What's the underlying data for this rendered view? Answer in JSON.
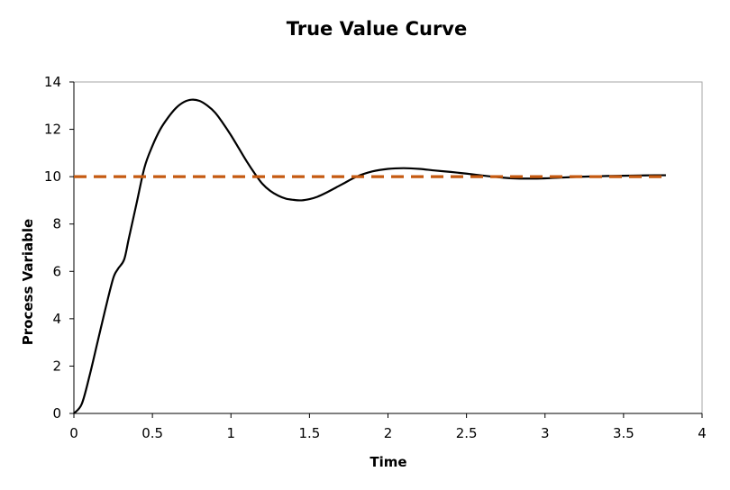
{
  "chart_data": {
    "type": "line",
    "title": "True Value Curve",
    "xlabel": "Time",
    "ylabel": "Process Variable",
    "xlim": [
      0,
      4
    ],
    "ylim": [
      0,
      14
    ],
    "x_ticks": [
      "0",
      "0.5",
      "1",
      "1.5",
      "2",
      "2.5",
      "3",
      "3.5",
      "4"
    ],
    "y_ticks": [
      "0",
      "2",
      "4",
      "6",
      "8",
      "10",
      "12",
      "14"
    ],
    "grid": false,
    "legend": "none",
    "series": [
      {
        "role": "response",
        "style": "solid",
        "color": "#000000",
        "x": [
          0,
          0.05,
          0.1,
          0.15,
          0.2,
          0.25,
          0.28,
          0.32,
          0.35,
          0.4,
          0.45,
          0.5,
          0.55,
          0.6,
          0.65,
          0.7,
          0.75,
          0.8,
          0.85,
          0.9,
          0.95,
          1.0,
          1.05,
          1.1,
          1.15,
          1.2,
          1.25,
          1.3,
          1.35,
          1.4,
          1.45,
          1.5,
          1.55,
          1.6,
          1.7,
          1.8,
          1.9,
          2.0,
          2.1,
          2.2,
          2.3,
          2.4,
          2.5,
          2.6,
          2.7,
          2.8,
          2.9,
          3.0,
          3.1,
          3.2,
          3.3,
          3.4,
          3.5,
          3.6,
          3.7,
          3.77
        ],
        "y": [
          0,
          0.4,
          1.6,
          3.0,
          4.4,
          5.7,
          6.1,
          6.5,
          7.4,
          8.9,
          10.4,
          11.3,
          12.0,
          12.5,
          12.9,
          13.15,
          13.25,
          13.2,
          13.0,
          12.7,
          12.25,
          11.75,
          11.2,
          10.65,
          10.15,
          9.7,
          9.4,
          9.2,
          9.07,
          9.02,
          9.0,
          9.05,
          9.15,
          9.3,
          9.65,
          10.0,
          10.22,
          10.33,
          10.36,
          10.33,
          10.26,
          10.2,
          10.13,
          10.05,
          9.98,
          9.93,
          9.92,
          9.93,
          9.96,
          9.99,
          10.01,
          10.03,
          10.04,
          10.05,
          10.06,
          10.06
        ]
      },
      {
        "role": "setpoint",
        "style": "dashed",
        "color": "#c55a11",
        "x": [
          0,
          3.77
        ],
        "y": [
          10,
          10
        ]
      }
    ]
  }
}
